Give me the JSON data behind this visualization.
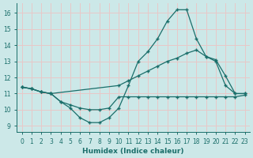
{
  "xlabel": "Humidex (Indice chaleur)",
  "bg_color": "#cce8e8",
  "grid_color": "#e8c8c8",
  "line_color": "#1a6e6a",
  "xlim": [
    -0.5,
    23.5
  ],
  "ylim": [
    8.6,
    16.6
  ],
  "xticks": [
    0,
    1,
    2,
    3,
    4,
    5,
    6,
    7,
    8,
    9,
    10,
    11,
    12,
    13,
    14,
    15,
    16,
    17,
    18,
    19,
    20,
    21,
    22,
    23
  ],
  "yticks": [
    9,
    10,
    11,
    12,
    13,
    14,
    15,
    16
  ],
  "line1_x": [
    0,
    1,
    2,
    3,
    4,
    5,
    6,
    7,
    8,
    9,
    10,
    11,
    12,
    13,
    14,
    15,
    16,
    17,
    18,
    19,
    20,
    21,
    22,
    23
  ],
  "line1_y": [
    11.4,
    11.3,
    11.1,
    11.0,
    10.5,
    10.1,
    9.5,
    9.2,
    9.2,
    9.5,
    10.1,
    11.5,
    13.0,
    13.6,
    14.4,
    15.5,
    16.2,
    16.2,
    14.4,
    13.3,
    13.1,
    12.1,
    11.0,
    11.0
  ],
  "line2_x": [
    0,
    1,
    2,
    3,
    10,
    11,
    12,
    13,
    14,
    15,
    16,
    17,
    18,
    19,
    20,
    21,
    22,
    23
  ],
  "line2_y": [
    11.4,
    11.3,
    11.1,
    11.0,
    11.5,
    11.8,
    12.1,
    12.4,
    12.7,
    13.0,
    13.2,
    13.5,
    13.7,
    13.3,
    13.0,
    11.5,
    11.0,
    11.0
  ],
  "line3_x": [
    0,
    1,
    2,
    3,
    4,
    5,
    6,
    7,
    8,
    9,
    10,
    11,
    12,
    13,
    14,
    15,
    16,
    17,
    18,
    19,
    20,
    21,
    22,
    23
  ],
  "line3_y": [
    11.4,
    11.3,
    11.1,
    11.0,
    10.5,
    10.3,
    10.1,
    10.0,
    10.0,
    10.1,
    10.8,
    10.8,
    10.8,
    10.8,
    10.8,
    10.8,
    10.8,
    10.8,
    10.8,
    10.8,
    10.8,
    10.8,
    10.8,
    10.9
  ]
}
